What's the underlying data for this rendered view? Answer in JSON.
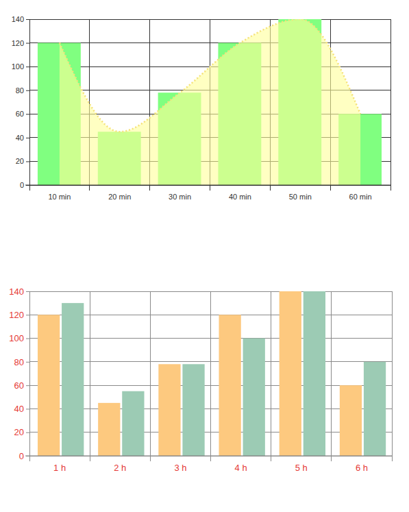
{
  "chart_data": [
    {
      "type": "bar",
      "categories": [
        "10 min",
        "20 min",
        "30 min",
        "40 min",
        "50 min",
        "60 min"
      ],
      "series": [
        {
          "type": "bar",
          "color": "#80ff80",
          "values": [
            120,
            45,
            78,
            120,
            140,
            60
          ]
        },
        {
          "type": "area",
          "color": "#ffff99",
          "line_style": "dotted",
          "values": [
            120,
            45,
            78,
            120,
            140,
            60
          ]
        }
      ],
      "ylim": [
        0,
        140
      ],
      "yticks": [
        0,
        20,
        40,
        60,
        80,
        100,
        120,
        140
      ],
      "grid": true
    },
    {
      "type": "bar",
      "categories": [
        "1 h",
        "2 h",
        "3 h",
        "4 h",
        "5 h",
        "6 h"
      ],
      "series": [
        {
          "color": "#fdc97f",
          "values": [
            120,
            45,
            78,
            120,
            140,
            60
          ]
        },
        {
          "color": "#9ccbb4",
          "values": [
            130,
            55,
            78,
            100,
            140,
            80
          ]
        }
      ],
      "ylim": [
        0,
        140
      ],
      "yticks": [
        0,
        20,
        40,
        60,
        80,
        100,
        120,
        140
      ],
      "grid": true
    }
  ]
}
